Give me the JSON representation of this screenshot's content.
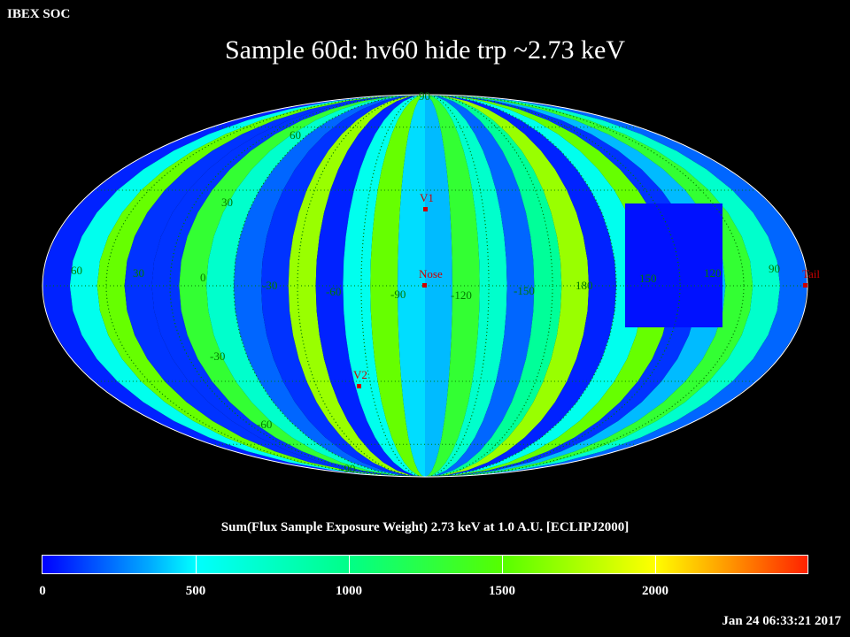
{
  "header": {
    "org": "IBEX SOC"
  },
  "title": "Sample 60d: hv60 hide trp ~2.73 keV",
  "colorbar": {
    "label": "Sum(Flux Sample Exposure Weight)  2.73 keV at 1.0 A.U. [ECLIPJ2000]",
    "ticks": [
      "0",
      "500",
      "1000",
      "1500",
      "2000"
    ]
  },
  "timestamp": "Jan 24 06:33:21 2017",
  "map": {
    "longitude_labels": [
      "60",
      "30",
      "0",
      "-30",
      "-60",
      "-90",
      "-120",
      "-150",
      "180",
      "150",
      "120",
      "90"
    ],
    "latitude_labels": [
      "90",
      "60",
      "30",
      "-30",
      "-60",
      "-90"
    ],
    "markers": [
      "V1",
      "Nose",
      "V2",
      "Tail"
    ]
  },
  "colors": {
    "blue": "#0000ff",
    "cyan": "#00ffff",
    "green": "#00ff00",
    "yellow": "#ffff00",
    "red": "#ff2200",
    "grid": "#007a00",
    "marker": "#cc0000"
  }
}
